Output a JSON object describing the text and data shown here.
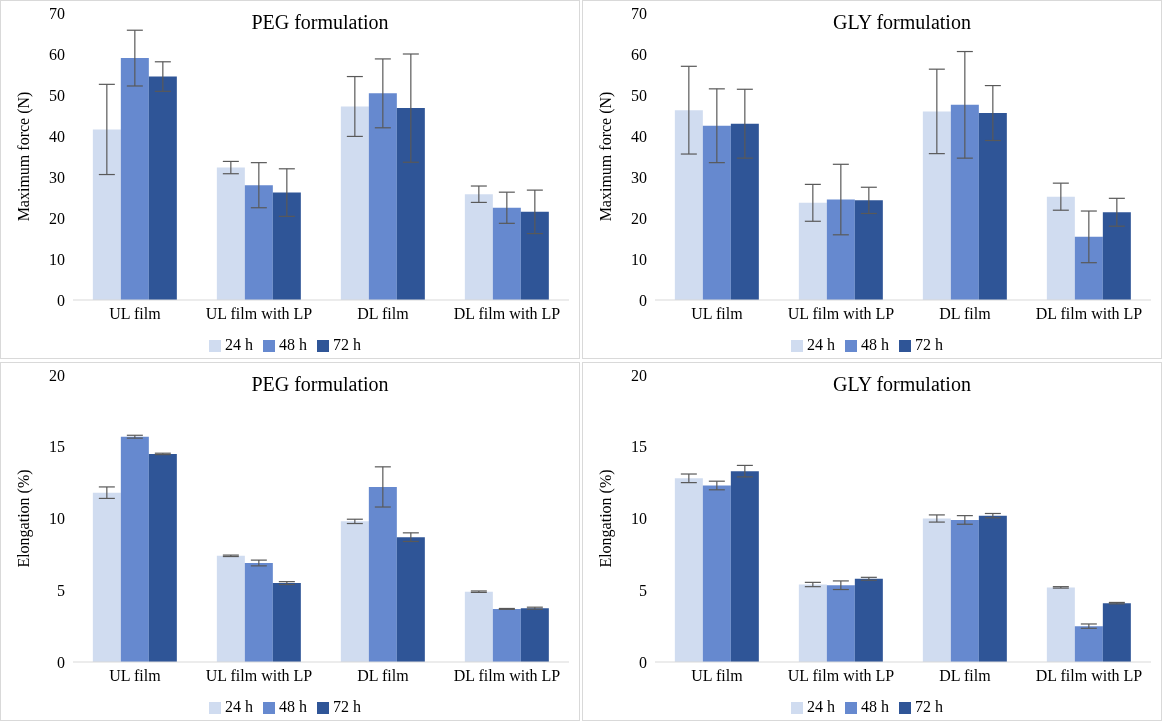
{
  "chart_data": [
    {
      "type": "bar",
      "title": "PEG formulation",
      "ylabel": "Maximum force (N)",
      "categories": [
        "UL film",
        "UL film with LP",
        "DL film",
        "DL film with LP"
      ],
      "series": [
        {
          "name": "24 h",
          "color": "#d0dcf0",
          "values": [
            41.6,
            32.3,
            47.2,
            25.8
          ],
          "errors": [
            11,
            1.5,
            7.3,
            2
          ]
        },
        {
          "name": "48 h",
          "color": "#6689cf",
          "values": [
            59,
            28,
            50.4,
            22.5
          ],
          "errors": [
            6.8,
            5.5,
            8.4,
            3.8
          ]
        },
        {
          "name": "72 h",
          "color": "#2f5597",
          "values": [
            54.5,
            26.2,
            46.8,
            21.5
          ],
          "errors": [
            3.6,
            5.8,
            13.2,
            5.3
          ]
        }
      ],
      "ylim": [
        0,
        70
      ],
      "yticks": [
        0,
        10,
        20,
        30,
        40,
        50,
        60,
        70
      ],
      "legend": "bottom",
      "grid": false
    },
    {
      "type": "bar",
      "title": "GLY formulation",
      "ylabel": "Maximum force (N)",
      "categories": [
        "UL film",
        "UL film with LP",
        "DL film",
        "DL film with LP"
      ],
      "series": [
        {
          "name": "24 h",
          "color": "#d0dcf0",
          "values": [
            46.3,
            23.7,
            46,
            25.2
          ],
          "errors": [
            10.7,
            4.5,
            10.3,
            3.3
          ]
        },
        {
          "name": "48 h",
          "color": "#6689cf",
          "values": [
            42.5,
            24.5,
            47.6,
            15.4
          ],
          "errors": [
            9,
            8.6,
            13,
            6.3
          ]
        },
        {
          "name": "72 h",
          "color": "#2f5597",
          "values": [
            43,
            24.3,
            45.6,
            21.4
          ],
          "errors": [
            8.4,
            3.2,
            6.7,
            3.4
          ]
        }
      ],
      "ylim": [
        0,
        70
      ],
      "yticks": [
        0,
        10,
        20,
        30,
        40,
        50,
        60,
        70
      ],
      "legend": "bottom",
      "grid": false
    },
    {
      "type": "bar",
      "title": "PEG formulation",
      "ylabel": "Elongation (%)",
      "categories": [
        "UL film",
        "UL film with LP",
        "DL film",
        "DL film with LP"
      ],
      "series": [
        {
          "name": "24 h",
          "color": "#d0dcf0",
          "values": [
            11.8,
            7.4,
            9.8,
            4.9
          ],
          "errors": [
            0.4,
            0.05,
            0.15,
            0.05
          ]
        },
        {
          "name": "48 h",
          "color": "#6689cf",
          "values": [
            15.7,
            6.9,
            12.2,
            3.7
          ],
          "errors": [
            0.1,
            0.2,
            1.4,
            0.03
          ]
        },
        {
          "name": "72 h",
          "color": "#2f5597",
          "values": [
            14.5,
            5.5,
            8.7,
            3.75
          ],
          "errors": [
            0.05,
            0.1,
            0.3,
            0.07
          ]
        }
      ],
      "ylim": [
        0,
        20
      ],
      "yticks": [
        0,
        5,
        10,
        15,
        20
      ],
      "legend": "bottom",
      "grid": false
    },
    {
      "type": "bar",
      "title": "GLY formulation",
      "ylabel": "Elongation (%)",
      "categories": [
        "UL film",
        "UL film with LP",
        "DL film",
        "DL film with LP"
      ],
      "series": [
        {
          "name": "24 h",
          "color": "#d0dcf0",
          "values": [
            12.8,
            5.4,
            10,
            5.2
          ],
          "errors": [
            0.3,
            0.15,
            0.25,
            0.05
          ]
        },
        {
          "name": "48 h",
          "color": "#6689cf",
          "values": [
            12.3,
            5.35,
            9.9,
            2.5
          ],
          "errors": [
            0.3,
            0.3,
            0.3,
            0.15
          ]
        },
        {
          "name": "72 h",
          "color": "#2f5597",
          "values": [
            13.3,
            5.8,
            10.2,
            4.1
          ],
          "errors": [
            0.4,
            0.1,
            0.15,
            0.05
          ]
        }
      ],
      "ylim": [
        0,
        20
      ],
      "yticks": [
        0,
        5,
        10,
        15,
        20
      ],
      "legend": "bottom",
      "grid": false
    }
  ]
}
